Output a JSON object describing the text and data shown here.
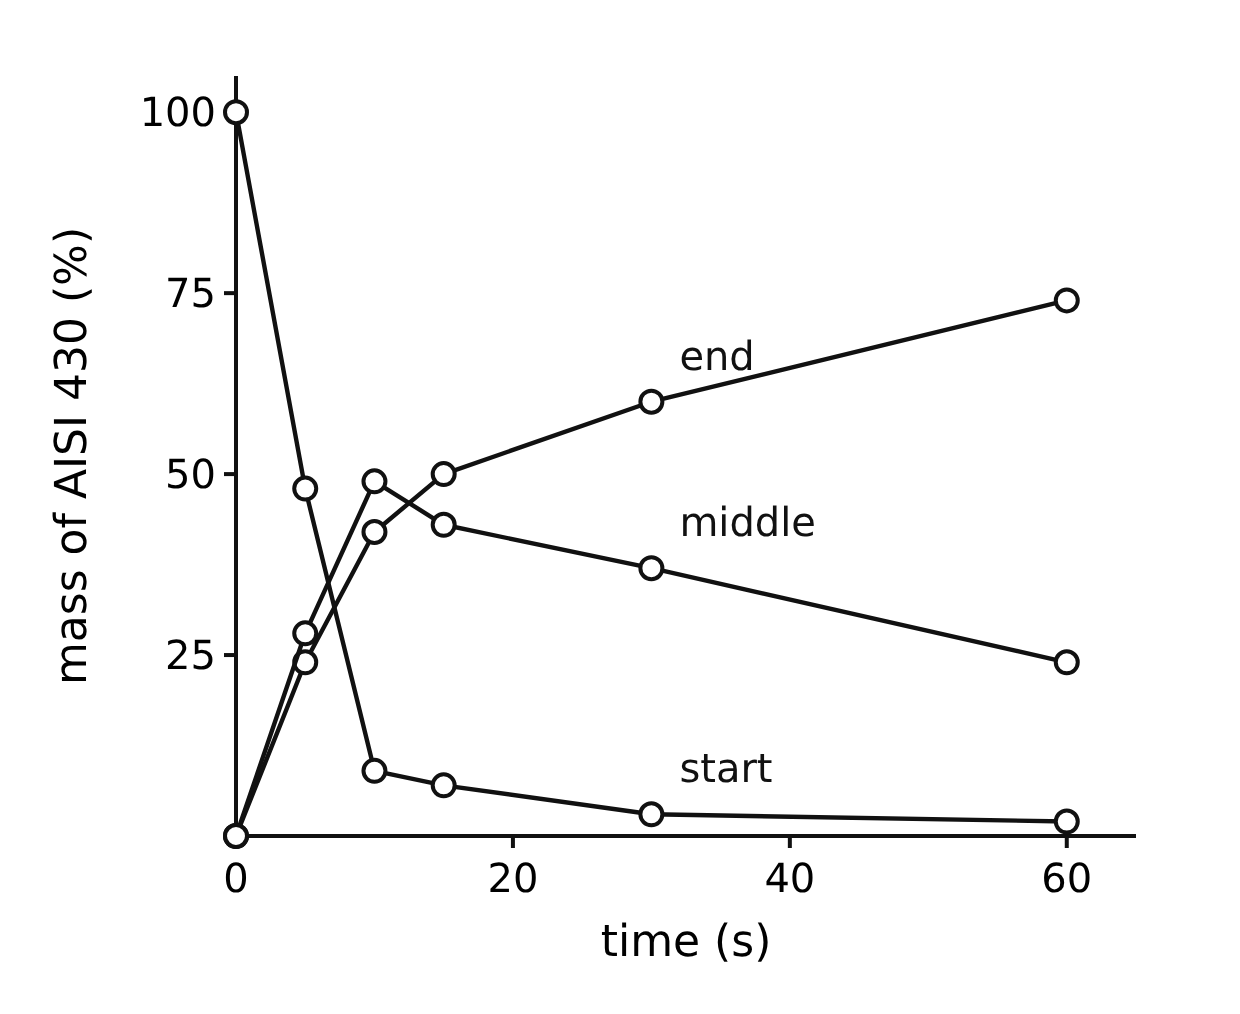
{
  "chart_data": {
    "type": "line",
    "xlabel": "time (s)",
    "ylabel": "mass of AISI 430 (%)",
    "x": [
      0,
      5,
      10,
      15,
      30,
      60
    ],
    "series": [
      {
        "name": "end",
        "color": "#111111",
        "values": [
          0,
          24,
          42,
          50,
          60,
          74
        ]
      },
      {
        "name": "middle",
        "color": "#111111",
        "values": [
          0,
          28,
          49,
          43,
          37,
          24
        ]
      },
      {
        "name": "start",
        "color": "#111111",
        "values": [
          100,
          48,
          9,
          7,
          3,
          2
        ]
      }
    ],
    "xlim": [
      0,
      65
    ],
    "ylim": [
      0,
      105
    ],
    "xticks": [
      0,
      20,
      40,
      60
    ],
    "yticks": [
      25,
      50,
      75,
      100
    ],
    "marker": "circle",
    "line_style": "solid"
  }
}
